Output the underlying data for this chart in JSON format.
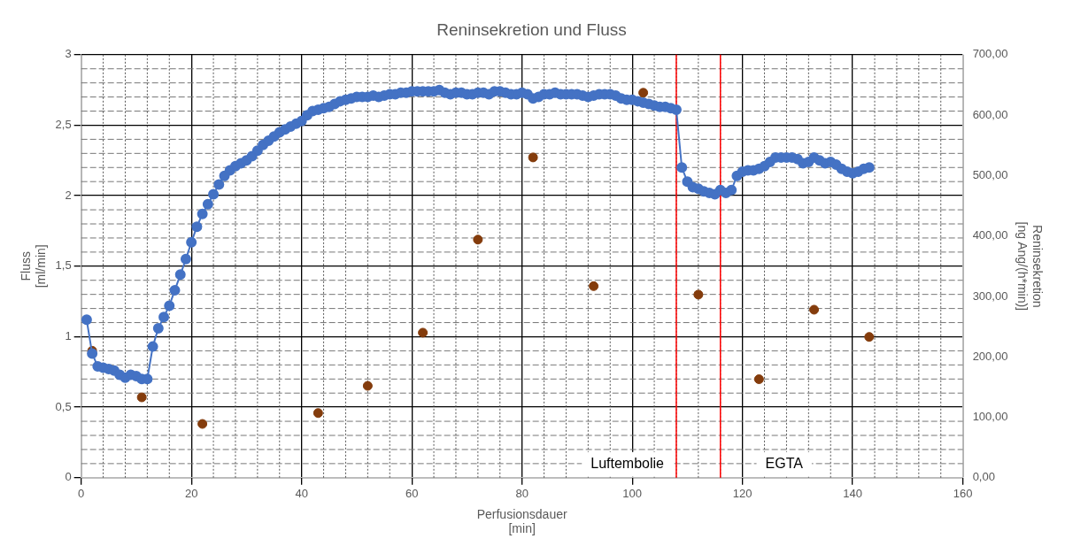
{
  "chart_data": {
    "type": "line",
    "title": "Reninsekretion und Fluss",
    "xlabel": "Perfusionsdauer\n[min]",
    "ylabel": "Fluss\n[ml/min]",
    "y2label": "Reninsekretion\n[ng Ang/(h*min)]",
    "xlim": [
      0,
      160
    ],
    "xticks": [
      0,
      20,
      40,
      60,
      80,
      100,
      120,
      140,
      160
    ],
    "ylim": [
      0,
      3
    ],
    "yticks": [
      0,
      {
        "value": 0.5,
        "label": "0,5"
      },
      1,
      {
        "value": 1.5,
        "label": "1,5"
      },
      2,
      {
        "value": 2.5,
        "label": "2,5"
      },
      3
    ],
    "y2lim": [
      0,
      700
    ],
    "y2ticks": [
      {
        "value": 0,
        "label": "0,00"
      },
      {
        "value": 100,
        "label": "100,00"
      },
      {
        "value": 200,
        "label": "200,00"
      },
      {
        "value": 300,
        "label": "300,00"
      },
      {
        "value": 400,
        "label": "400,00"
      },
      {
        "value": 500,
        "label": "500,00"
      },
      {
        "value": 600,
        "label": "600,00"
      },
      {
        "value": 700,
        "label": "700,00"
      }
    ],
    "grid": true,
    "legend": false,
    "marker": "circle",
    "line_style": "solid",
    "series": [
      {
        "type": "line",
        "color": "#4472c4",
        "x": [
          1,
          2,
          3,
          4,
          5,
          6,
          7,
          8,
          9,
          10,
          11,
          12,
          13,
          14,
          15,
          16,
          17,
          18,
          19,
          20,
          21,
          22,
          23,
          24,
          25,
          26,
          27,
          28,
          29,
          30,
          31,
          32,
          33,
          34,
          35,
          36,
          37,
          38,
          39,
          40,
          41,
          42,
          43,
          44,
          45,
          46,
          47,
          48,
          49,
          50,
          51,
          52,
          53,
          54,
          55,
          56,
          57,
          58,
          59,
          60,
          61,
          62,
          63,
          64,
          65,
          66,
          67,
          68,
          69,
          70,
          71,
          72,
          73,
          74,
          75,
          76,
          77,
          78,
          79,
          80,
          81,
          82,
          83,
          84,
          85,
          86,
          87,
          88,
          89,
          90,
          91,
          92,
          93,
          94,
          95,
          96,
          97,
          98,
          99,
          100,
          101,
          102,
          103,
          104,
          105,
          106,
          107,
          108,
          109,
          110,
          111,
          112,
          113,
          114,
          115,
          116,
          117,
          118,
          119,
          120,
          121,
          122,
          123,
          124,
          125,
          126,
          127,
          128,
          129,
          130,
          131,
          132,
          133,
          134,
          135,
          136,
          137,
          138,
          139,
          140,
          141,
          142,
          143
        ],
        "values": [
          1.12,
          0.88,
          0.79,
          0.78,
          0.77,
          0.76,
          0.73,
          0.71,
          0.73,
          0.72,
          0.7,
          0.7,
          0.93,
          1.06,
          1.14,
          1.22,
          1.33,
          1.44,
          1.55,
          1.67,
          1.78,
          1.87,
          1.94,
          2.01,
          2.08,
          2.14,
          2.18,
          2.21,
          2.23,
          2.25,
          2.28,
          2.32,
          2.36,
          2.39,
          2.42,
          2.45,
          2.47,
          2.49,
          2.51,
          2.53,
          2.57,
          2.6,
          2.61,
          2.62,
          2.63,
          2.65,
          2.67,
          2.68,
          2.69,
          2.7,
          2.7,
          2.7,
          2.71,
          2.7,
          2.71,
          2.72,
          2.72,
          2.73,
          2.73,
          2.74,
          2.74,
          2.74,
          2.74,
          2.74,
          2.75,
          2.73,
          2.72,
          2.73,
          2.73,
          2.72,
          2.72,
          2.73,
          2.73,
          2.72,
          2.74,
          2.74,
          2.73,
          2.72,
          2.72,
          2.73,
          2.72,
          2.69,
          2.7,
          2.72,
          2.72,
          2.73,
          2.72,
          2.72,
          2.72,
          2.72,
          2.71,
          2.7,
          2.71,
          2.72,
          2.72,
          2.72,
          2.71,
          2.69,
          2.68,
          2.68,
          2.67,
          2.66,
          2.65,
          2.64,
          2.63,
          2.63,
          2.62,
          2.61,
          2.2,
          2.1,
          2.06,
          2.05,
          2.03,
          2.02,
          2.01,
          2.04,
          2.02,
          2.04,
          2.14,
          2.17,
          2.18,
          2.18,
          2.19,
          2.21,
          2.24,
          2.27,
          2.27,
          2.27,
          2.27,
          2.26,
          2.23,
          2.24,
          2.27,
          2.25,
          2.23,
          2.24,
          2.22,
          2.19,
          2.17,
          2.16,
          2.17,
          2.19,
          2.2
        ]
      },
      {
        "type": "scatter",
        "axis": "y2",
        "color": "#843c0c",
        "x": [
          2,
          11,
          22,
          43,
          52,
          62,
          72,
          82,
          93,
          102,
          112,
          123,
          133,
          143
        ],
        "values": [
          210,
          133,
          89,
          107,
          152,
          240,
          394,
          530,
          317,
          637,
          303,
          163,
          278,
          233
        ]
      }
    ],
    "ref_lines": [
      {
        "axis": "x",
        "value": 108,
        "color": "#ff0000",
        "line_style": "solid"
      },
      {
        "axis": "x",
        "value": 116,
        "color": "#ff0000",
        "line_style": "solid"
      }
    ],
    "annotations": [
      "Luftembolie",
      "EGTA"
    ]
  }
}
